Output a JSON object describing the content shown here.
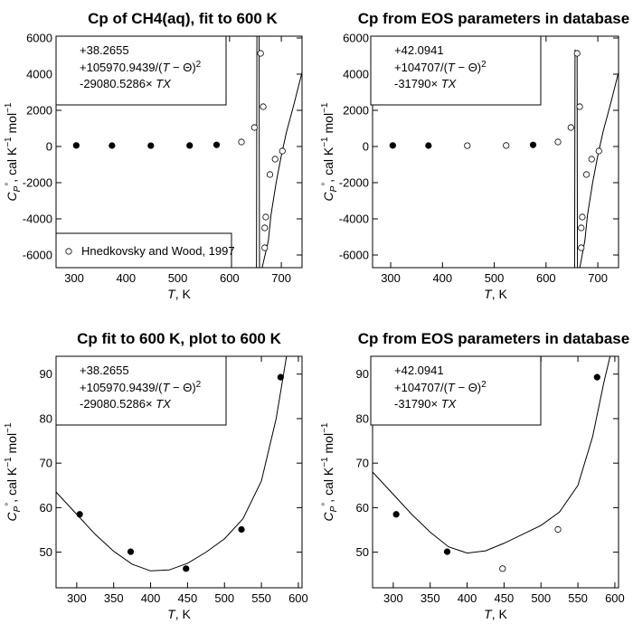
{
  "chart_data": [
    {
      "type": "scatter",
      "title": "Cp of CH4(aq), fit to 600 K",
      "xlabel_var": "T",
      "xlabel_unit": ", K",
      "ylabel": "C_P°, cal K⁻¹ mol⁻¹",
      "xlim": [
        265,
        740
      ],
      "ylim": [
        -6700,
        6100
      ],
      "xticks": [
        300,
        400,
        500,
        600,
        700
      ],
      "yticks": [
        -6000,
        -4000,
        -2000,
        0,
        2000,
        4000,
        6000
      ],
      "equation": [
        "+38.2655",
        "+105970.9439/(T − Θ)²",
        "-29080.5286× TX"
      ],
      "legend": {
        "label": "Hnedkovsky and Wood, 1997",
        "position": "bottom-left"
      },
      "series": [
        {
          "marker": "filled",
          "points": [
            [
              304,
              58
            ],
            [
              373,
              50
            ],
            [
              448,
              46
            ],
            [
              523,
              55
            ],
            [
              575,
              89
            ]
          ]
        },
        {
          "marker": "open",
          "points": [
            [
              623,
              250
            ],
            [
              648,
              1050
            ],
            [
              660,
              5150
            ],
            [
              665,
              2200
            ],
            [
              670,
              -3900
            ],
            [
              668,
              -4500
            ],
            [
              668,
              -5600
            ],
            [
              678,
              -1550
            ],
            [
              688,
              -700
            ],
            [
              702,
              -250
            ]
          ]
        }
      ],
      "curve": {
        "theta": 655,
        "a": 38.2655,
        "b": 105970.9439,
        "c": -29080.5286
      }
    },
    {
      "type": "scatter",
      "title": "Cp from EOS parameters in database",
      "xlabel_var": "T",
      "xlabel_unit": ", K",
      "ylabel": "C_P°, cal K⁻¹ mol⁻¹",
      "xlim": [
        265,
        740
      ],
      "ylim": [
        -6700,
        6100
      ],
      "xticks": [
        300,
        400,
        500,
        600,
        700
      ],
      "yticks": [
        -6000,
        -4000,
        -2000,
        0,
        2000,
        4000,
        6000
      ],
      "equation": [
        "+42.0941",
        "+104707/(T − Θ)²",
        "-31790× TX"
      ],
      "series": [
        {
          "marker": "filled",
          "points": [
            [
              304,
              58
            ],
            [
              373,
              50
            ],
            [
              575,
              89
            ]
          ]
        },
        {
          "marker": "open",
          "points": [
            [
              448,
              46
            ],
            [
              523,
              55
            ],
            [
              623,
              250
            ],
            [
              648,
              1050
            ],
            [
              660,
              5150
            ],
            [
              665,
              2200
            ],
            [
              670,
              -3900
            ],
            [
              668,
              -4500
            ],
            [
              668,
              -5600
            ],
            [
              678,
              -1550
            ],
            [
              688,
              -700
            ],
            [
              702,
              -250
            ]
          ]
        }
      ],
      "curve": {
        "theta": 658,
        "a": 42.0941,
        "b": 104707,
        "c": -31790
      }
    },
    {
      "type": "scatter",
      "title": "Cp fit to 600 K, plot to 600 K",
      "xlabel_var": "T",
      "xlabel_unit": ", K",
      "ylabel": "C_P°, cal K⁻¹ mol⁻¹",
      "xlim": [
        272,
        605
      ],
      "ylim": [
        42,
        94
      ],
      "xticks": [
        300,
        350,
        400,
        450,
        500,
        550,
        600
      ],
      "yticks": [
        50,
        60,
        70,
        80,
        90
      ],
      "equation": [
        "+38.2655",
        "+105970.9439/(T − Θ)²",
        "-29080.5286× TX"
      ],
      "series": [
        {
          "marker": "filled",
          "points": [
            [
              304,
              58.5
            ],
            [
              373,
              50.1
            ],
            [
              448,
              46.3
            ],
            [
              523,
              55.1
            ],
            [
              576,
              89.3
            ]
          ]
        }
      ],
      "curve_points": [
        [
          272,
          63.5
        ],
        [
          300,
          58.5
        ],
        [
          325,
          54
        ],
        [
          350,
          50.2
        ],
        [
          375,
          47.3
        ],
        [
          400,
          45.8
        ],
        [
          425,
          46
        ],
        [
          450,
          47.5
        ],
        [
          475,
          50
        ],
        [
          500,
          53
        ],
        [
          525,
          57.5
        ],
        [
          550,
          66
        ],
        [
          570,
          80
        ],
        [
          585,
          95
        ]
      ]
    },
    {
      "type": "scatter",
      "title": "Cp from EOS parameters in database",
      "xlabel_var": "T",
      "xlabel_unit": ", K",
      "ylabel": "C_P°, cal K⁻¹ mol⁻¹",
      "xlim": [
        272,
        605
      ],
      "ylim": [
        42,
        94
      ],
      "xticks": [
        300,
        350,
        400,
        450,
        500,
        550,
        600
      ],
      "yticks": [
        50,
        60,
        70,
        80,
        90
      ],
      "equation": [
        "+42.0941",
        "+104707/(T − Θ)²",
        "-31790× TX"
      ],
      "series": [
        {
          "marker": "filled",
          "points": [
            [
              304,
              58.5
            ],
            [
              373,
              50.1
            ],
            [
              576,
              89.3
            ]
          ]
        },
        {
          "marker": "open",
          "points": [
            [
              448,
              46.3
            ],
            [
              523,
              55.1
            ]
          ]
        }
      ],
      "curve_points": [
        [
          272,
          68
        ],
        [
          300,
          63
        ],
        [
          325,
          58.5
        ],
        [
          350,
          54.5
        ],
        [
          375,
          51.2
        ],
        [
          400,
          49.8
        ],
        [
          425,
          50.3
        ],
        [
          450,
          52
        ],
        [
          475,
          54
        ],
        [
          500,
          56
        ],
        [
          525,
          59
        ],
        [
          550,
          65
        ],
        [
          570,
          76
        ],
        [
          585,
          88
        ],
        [
          595,
          95
        ]
      ]
    }
  ]
}
